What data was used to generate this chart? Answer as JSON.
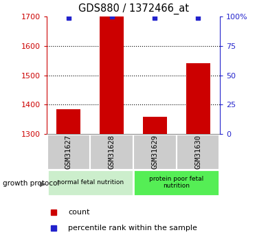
{
  "title": "GDS880 / 1372466_at",
  "samples": [
    "GSM31627",
    "GSM31628",
    "GSM31629",
    "GSM31630"
  ],
  "counts": [
    1385,
    1700,
    1358,
    1542
  ],
  "percentile_ranks": [
    99,
    100,
    99,
    99
  ],
  "ylim_left": [
    1300,
    1700
  ],
  "ylim_right": [
    0,
    100
  ],
  "yticks_left": [
    1300,
    1400,
    1500,
    1600,
    1700
  ],
  "yticks_right": [
    0,
    25,
    50,
    75,
    100
  ],
  "ytick_labels_right": [
    "0",
    "25",
    "50",
    "75",
    "100%"
  ],
  "bar_color": "#cc0000",
  "dot_color": "#2222cc",
  "title_color": "#000000",
  "left_axis_color": "#cc0000",
  "right_axis_color": "#2222cc",
  "groups": [
    {
      "label": "normal fetal nutrition",
      "samples": [
        0,
        1
      ],
      "color": "#cceecc"
    },
    {
      "label": "protein poor fetal\nnutrition",
      "samples": [
        2,
        3
      ],
      "color": "#55ee55"
    }
  ],
  "group_label_prefix": "growth protocol",
  "legend_count_label": "count",
  "legend_percentile_label": "percentile rank within the sample",
  "tick_label_bg": "#cccccc",
  "bar_width": 0.55
}
